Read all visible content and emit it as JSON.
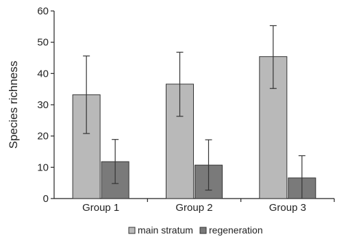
{
  "chart_data": {
    "type": "bar",
    "title": "",
    "xlabel": "",
    "ylabel": "Species richness",
    "ylim": [
      0,
      60
    ],
    "yticks": [
      0,
      10,
      20,
      30,
      40,
      50,
      60
    ],
    "grid": false,
    "legend_position": "bottom",
    "categories": [
      "Group 1",
      "Group 2",
      "Group 3"
    ],
    "series": [
      {
        "name": "main stratum",
        "color": "#b9b9b9",
        "values": [
          33.2,
          36.6,
          45.4
        ],
        "error_low": [
          20.8,
          26.3,
          35.2
        ],
        "error_high": [
          45.6,
          46.8,
          55.3
        ]
      },
      {
        "name": "regeneration",
        "color": "#7a7a7a",
        "values": [
          11.8,
          10.7,
          6.6
        ],
        "error_low": [
          4.8,
          2.7,
          -0.6
        ],
        "error_high": [
          18.9,
          18.8,
          13.7
        ]
      }
    ]
  }
}
